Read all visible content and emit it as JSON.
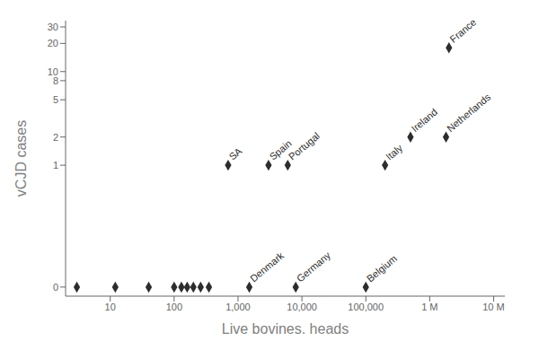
{
  "chart_data": {
    "type": "scatter",
    "x": [
      3,
      12,
      40,
      100,
      130,
      160,
      200,
      260,
      350,
      700,
      1500,
      3000,
      6000,
      8000,
      100000,
      200000,
      500000,
      1800000,
      2000000
    ],
    "values": [
      0.05,
      0.05,
      0.05,
      0.05,
      0.05,
      0.05,
      0.05,
      0.05,
      0.05,
      1,
      0.05,
      1,
      1,
      0.05,
      0.05,
      1,
      2,
      2,
      18
    ],
    "annotations": [
      {
        "text": "SA",
        "x": 700,
        "y": 1
      },
      {
        "text": "Denmark",
        "x": 1500,
        "y": 0.05
      },
      {
        "text": "Spain",
        "x": 3000,
        "y": 1
      },
      {
        "text": "Portugal",
        "x": 6000,
        "y": 1
      },
      {
        "text": "Germany",
        "x": 8000,
        "y": 0.05
      },
      {
        "text": "Belgium",
        "x": 100000,
        "y": 0.05
      },
      {
        "text": "Italy",
        "x": 200000,
        "y": 1
      },
      {
        "text": "Ireland",
        "x": 500000,
        "y": 2
      },
      {
        "text": "Netherlands",
        "x": 1800000,
        "y": 2
      },
      {
        "text": "France",
        "x": 2000000,
        "y": 18
      }
    ],
    "x_label": "Live bovines, heads",
    "y_label": "vCJD cases",
    "xlim": [
      2,
      15000000
    ],
    "xticks": [
      10,
      100,
      {
        "value": 1000,
        "label": "1,000"
      },
      {
        "value": 10000,
        "label": "10,000"
      },
      {
        "value": 100000,
        "label": "100,000"
      },
      {
        "value": 1000000,
        "label": "1 M"
      },
      {
        "value": 10000000,
        "label": "10 M"
      }
    ],
    "ylim": [
      0.04,
      35
    ],
    "yticks": [
      {
        "value": 0.05,
        "label": "0"
      },
      1,
      2,
      5,
      8,
      10,
      20,
      30
    ],
    "log": true,
    "grid": false,
    "color": "#2d2d2d",
    "marker": "diamond"
  }
}
